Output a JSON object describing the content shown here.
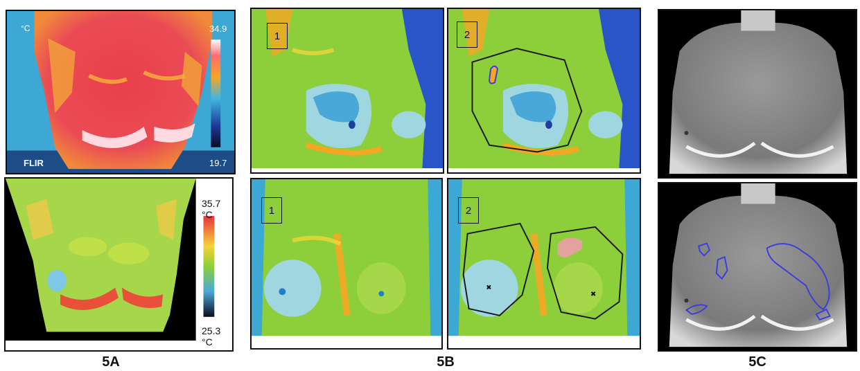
{
  "panel_5a_top": {
    "unit": "°C",
    "scale_max": "34.9",
    "scale_min": "19.7",
    "brand": "FLIR"
  },
  "panel_5a_bottom": {
    "scale_max": "35.7 °C",
    "scale_min": "25.3 °C"
  },
  "panel_5b": {
    "label_1": "1",
    "label_2": "2"
  },
  "captions": {
    "a": "5A",
    "b": "5B",
    "c": "5C"
  },
  "colors": {
    "hot": "#e8343c",
    "warm": "#f5a623",
    "mid": "#8ccf3a",
    "cool": "#4aa8d8",
    "cold": "#1f3f9e",
    "contour_blue": "#3b3ed8",
    "roi_pink": "#f29ab0"
  }
}
